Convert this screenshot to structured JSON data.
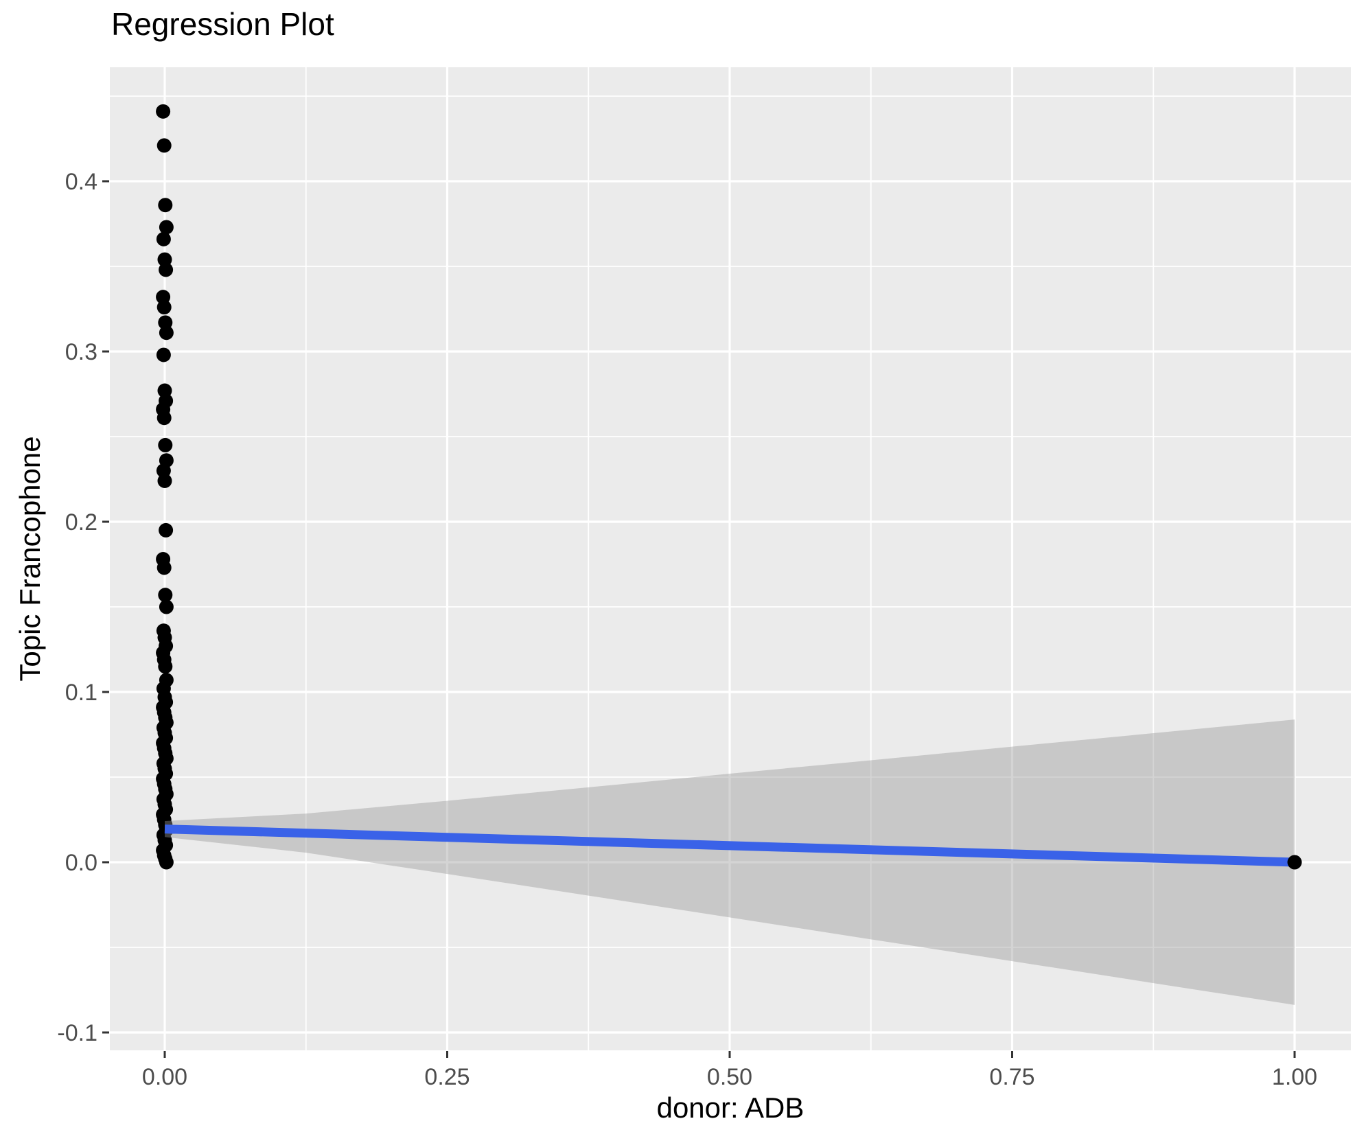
{
  "chart_data": {
    "type": "scatter",
    "title": "Regression Plot",
    "xlabel": "donor: ADB",
    "ylabel": "Topic Francophone",
    "x_axis": {
      "tick_values": [
        0,
        0.25,
        0.5,
        0.75,
        1
      ],
      "tick_labels": [
        "0.00",
        "0.25",
        "0.50",
        "0.75",
        "1.00"
      ],
      "minor_tick_values": [
        0.125,
        0.375,
        0.625,
        0.875
      ],
      "range": [
        -0.0486,
        1.0498
      ]
    },
    "y_axis": {
      "tick_values": [
        -0.1,
        0,
        0.1,
        0.2,
        0.3,
        0.4
      ],
      "tick_labels": [
        "-0.1",
        "0.0",
        "0.1",
        "0.2",
        "0.3",
        "0.4"
      ],
      "minor_tick_values": [
        -0.05,
        0.05,
        0.15,
        0.25,
        0.35,
        0.45
      ],
      "range": [
        -0.1105,
        0.4669
      ]
    },
    "grid": "on",
    "legend": "none",
    "points_at_x0": [
      0.441,
      0.421,
      0.386,
      0.373,
      0.366,
      0.354,
      0.348,
      0.332,
      0.326,
      0.317,
      0.311,
      0.298,
      0.277,
      0.271,
      0.266,
      0.261,
      0.245,
      0.236,
      0.23,
      0.224,
      0.195,
      0.178,
      0.173,
      0.157,
      0.15,
      0.136,
      0.132,
      0.127,
      0.123,
      0.119,
      0.115,
      0.107,
      0.102,
      0.097,
      0.094,
      0.091,
      0.088,
      0.085,
      0.082,
      0.079,
      0.076,
      0.073,
      0.07,
      0.067,
      0.064,
      0.061,
      0.058,
      0.055,
      0.052,
      0.049,
      0.046,
      0.043,
      0.04,
      0.037,
      0.034,
      0.031,
      0.028,
      0.025,
      0.022,
      0.019,
      0.016,
      0.013,
      0.01,
      0.007,
      0.004,
      0.002,
      0.0
    ],
    "point_at_x1": {
      "x": 1,
      "y": 0.0
    },
    "regression_line": {
      "x": [
        0,
        1
      ],
      "y": [
        0.0195,
        0.0
      ]
    },
    "confidence_ribbon": {
      "x": [
        0,
        0.125,
        0.25,
        0.375,
        0.5,
        0.625,
        0.75,
        0.875,
        1
      ],
      "upper": [
        0.0242,
        0.0286,
        0.0361,
        0.044,
        0.052,
        0.0599,
        0.0679,
        0.0758,
        0.0838
      ],
      "lower": [
        0.0148,
        0.0056,
        -0.0069,
        -0.0196,
        -0.0324,
        -0.0453,
        -0.0581,
        -0.071,
        -0.0838
      ]
    },
    "colors": {
      "panel_background": "#EBEBEB",
      "grid_line": "#FFFFFF",
      "point": "#000000",
      "regression_line": "#3A62E8",
      "ribbon_fill": "rgba(153,153,153,0.42)",
      "tick_label": "#4D4D4D",
      "tick_mark": "#333333",
      "title_text": "#000000"
    }
  }
}
